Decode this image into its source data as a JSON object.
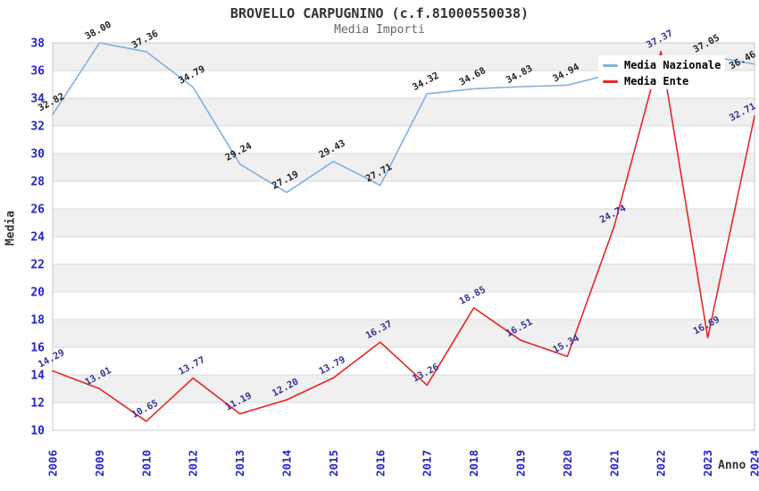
{
  "page": {
    "title": "BROVELLO CARPUGNINO (c.f.81000550038)",
    "subtitle": "Media Importi"
  },
  "axes": {
    "y_title": "Media",
    "x_title": "Anno"
  },
  "legend": {
    "items": [
      {
        "label": "Media Nazionale"
      },
      {
        "label": "Media Ente"
      }
    ]
  },
  "colors": {
    "nazionale_line": "#7eb1e3",
    "ente_line": "#e92525",
    "tick_label_blue": "#2424c8",
    "nazionale_data_label": "#222222",
    "ente_data_label": "#333399",
    "band_gray": "#f0f0f0",
    "gridline": "#d9d9d9",
    "plot_border": "#c8c8c8",
    "title_text": "#333333",
    "subtitle_text": "#666666"
  },
  "chart_data": {
    "type": "line",
    "title": "BROVELLO CARPUGNINO (c.f.81000550038)",
    "subtitle": "Media Importi",
    "xlabel": "Anno",
    "ylabel": "Media",
    "ylim": [
      10,
      38
    ],
    "ytick_step": 2,
    "grid": "horizontal-bands-alternating",
    "legend_position": "top-right",
    "x": [
      "2006",
      "2009",
      "2010",
      "2012",
      "2013",
      "2014",
      "2015",
      "2016",
      "2017",
      "2018",
      "2019",
      "2020",
      "2021",
      "2022",
      "2023",
      "2024"
    ],
    "series": [
      {
        "name": "Media Nazionale",
        "color": "#7eb1e3",
        "label_color": "#222222",
        "values": [
          32.82,
          38.0,
          37.36,
          34.79,
          29.24,
          27.19,
          29.43,
          27.71,
          34.32,
          34.68,
          34.83,
          34.94,
          35.8,
          36.6,
          37.05,
          36.46
        ],
        "labels": [
          "32.82",
          "38.00",
          "37.36",
          "34.79",
          "29.24",
          "27.19",
          "29.43",
          "27.71",
          "34.32",
          "34.68",
          "34.83",
          "34.94",
          "",
          "",
          "37.05",
          "36.46"
        ]
      },
      {
        "name": "Media Ente",
        "color": "#e92525",
        "label_color": "#333399",
        "values": [
          14.29,
          13.01,
          10.65,
          13.77,
          11.19,
          12.2,
          13.79,
          16.37,
          13.26,
          18.85,
          16.51,
          15.34,
          24.74,
          37.37,
          16.69,
          32.71
        ],
        "labels": [
          "14.29",
          "13.01",
          "10.65",
          "13.77",
          "11.19",
          "12.20",
          "13.79",
          "16.37",
          "13.26",
          "18.85",
          "16.51",
          "15.34",
          "24.74",
          "37.37",
          "16.69",
          "32.71"
        ]
      }
    ]
  }
}
